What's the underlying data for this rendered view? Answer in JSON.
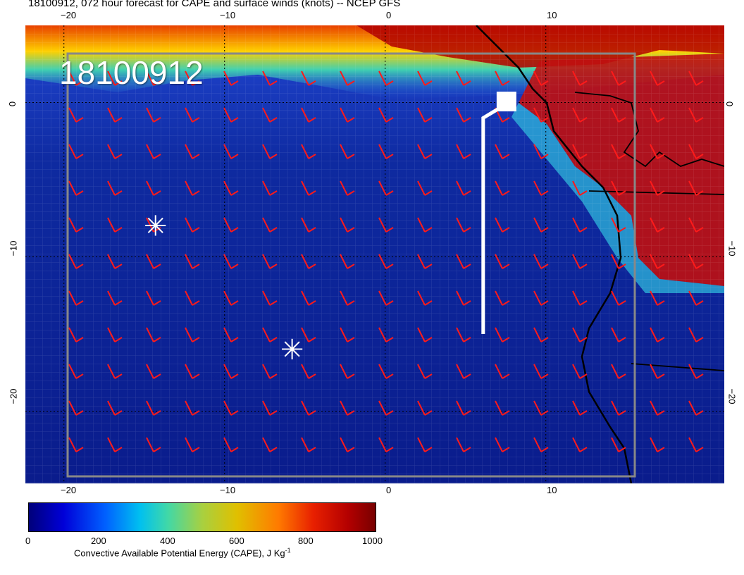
{
  "title": "18100912, 072 hour forecast for CAPE and surface winds (knots) -- NCEP GFS",
  "overlay_date": "18100912",
  "axis": {
    "lon_ticks_top": [
      "−20",
      "−10",
      "0",
      "10"
    ],
    "lon_ticks_bottom": [
      "−20",
      "−10",
      "0",
      "10"
    ],
    "lat_ticks_left": [
      "0",
      "−10",
      "−20"
    ],
    "lat_ticks_right": [
      "0",
      "−10",
      "−20"
    ]
  },
  "markers": [
    {
      "name": "asterisk-marker-1",
      "symbol": "✳",
      "lon": -14.3,
      "lat": -8.0
    },
    {
      "name": "asterisk-marker-2",
      "symbol": "✳",
      "lon": -5.8,
      "lat": -16.0
    }
  ],
  "flight_track": {
    "points": [
      [
        6.1,
        -15.0
      ],
      [
        6.1,
        -1.0
      ],
      [
        6.9,
        -0.5
      ],
      [
        7.2,
        -0.3
      ]
    ]
  },
  "colorbar": {
    "ticks": [
      "0",
      "200",
      "400",
      "600",
      "800",
      "1000"
    ],
    "caption": "Convective Available Potential Energy (CAPE), J Kg",
    "caption_sup": "-1",
    "range": [
      0,
      1000
    ]
  },
  "colors": {
    "wind_barb": "#ff1a1a",
    "ocean_low": "#0a1a8a",
    "track": "#ffffff",
    "coast": "#000000"
  }
}
